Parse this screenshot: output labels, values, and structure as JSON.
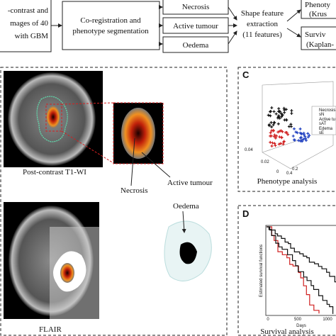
{
  "pipeline": {
    "input": [
      "-contrast and",
      "mages of 40",
      "with GBM"
    ],
    "step": [
      "Co-registration and",
      "phenotype segmentation"
    ],
    "phenotypes": [
      "Necrosis",
      "Active tumour",
      "Oedema"
    ],
    "features": [
      "Shape feature",
      "extraction",
      "(11 features)"
    ],
    "outputs": [
      [
        "Phenoty",
        "(Krus"
      ],
      [
        "Surviv",
        "(Kaplan-"
      ]
    ]
  },
  "panel_b": {
    "caption_t1": "Post-contrast T1-WI",
    "caption_flair": "FLAIR",
    "active": "Active tumour",
    "necrosis": "Necrosis",
    "oedema": "Oedema"
  },
  "panel_c": {
    "letter": "C",
    "title": "Phenotype analysis",
    "legend": [
      "Necrosis",
      "sN",
      "Active tu",
      "sAT",
      "Edema",
      "sE"
    ],
    "ticks": [
      "0.04",
      "0.02",
      "0",
      "0.2",
      "0.4"
    ]
  },
  "panel_d": {
    "letter": "D",
    "title": "Survival analysis",
    "xlabel": "Days",
    "ylabel": "Estimated survival functions",
    "xticks": [
      "0",
      "500",
      "1000"
    ]
  }
}
